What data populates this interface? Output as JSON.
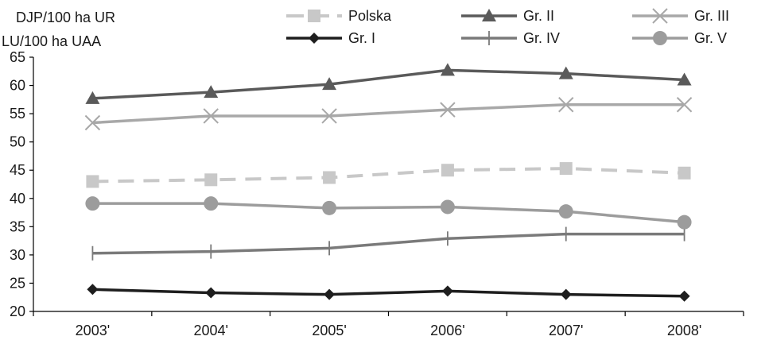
{
  "chart_data": {
    "type": "line",
    "ylabel_line1": "DJP/100 ha UR",
    "ylabel_line2": "LU/100 ha UAA",
    "categories": [
      "2003'",
      "2004'",
      "2005'",
      "2006'",
      "2007'",
      "2008'"
    ],
    "ylim": [
      20,
      65
    ],
    "yticks": [
      20,
      25,
      30,
      35,
      40,
      45,
      50,
      55,
      60,
      65
    ],
    "grid": false,
    "legend_position": "top",
    "series": [
      {
        "name": "Polska",
        "values": [
          43.0,
          43.3,
          43.7,
          45.0,
          45.3,
          44.5
        ],
        "color": "#c8c8c8",
        "marker": "square",
        "dash": true
      },
      {
        "name": "Gr. I",
        "values": [
          23.9,
          23.3,
          23.0,
          23.6,
          23.0,
          22.7
        ],
        "color": "#1e1e1e",
        "marker": "diamond",
        "dash": false
      },
      {
        "name": "Gr. II",
        "values": [
          57.7,
          58.8,
          60.2,
          62.7,
          62.1,
          61.0
        ],
        "color": "#5a5a5a",
        "marker": "triangle",
        "dash": false
      },
      {
        "name": "Gr. IV",
        "values": [
          30.3,
          30.6,
          31.2,
          32.9,
          33.7,
          33.7
        ],
        "color": "#7a7a7a",
        "marker": "plus",
        "dash": false
      },
      {
        "name": "Gr. III",
        "values": [
          53.4,
          54.6,
          54.6,
          55.7,
          56.6,
          56.6
        ],
        "color": "#a8a8a8",
        "marker": "x",
        "dash": false
      },
      {
        "name": "Gr. V",
        "values": [
          39.1,
          39.1,
          38.3,
          38.5,
          37.7,
          35.8
        ],
        "color": "#9c9c9c",
        "marker": "circle",
        "dash": false
      }
    ]
  }
}
